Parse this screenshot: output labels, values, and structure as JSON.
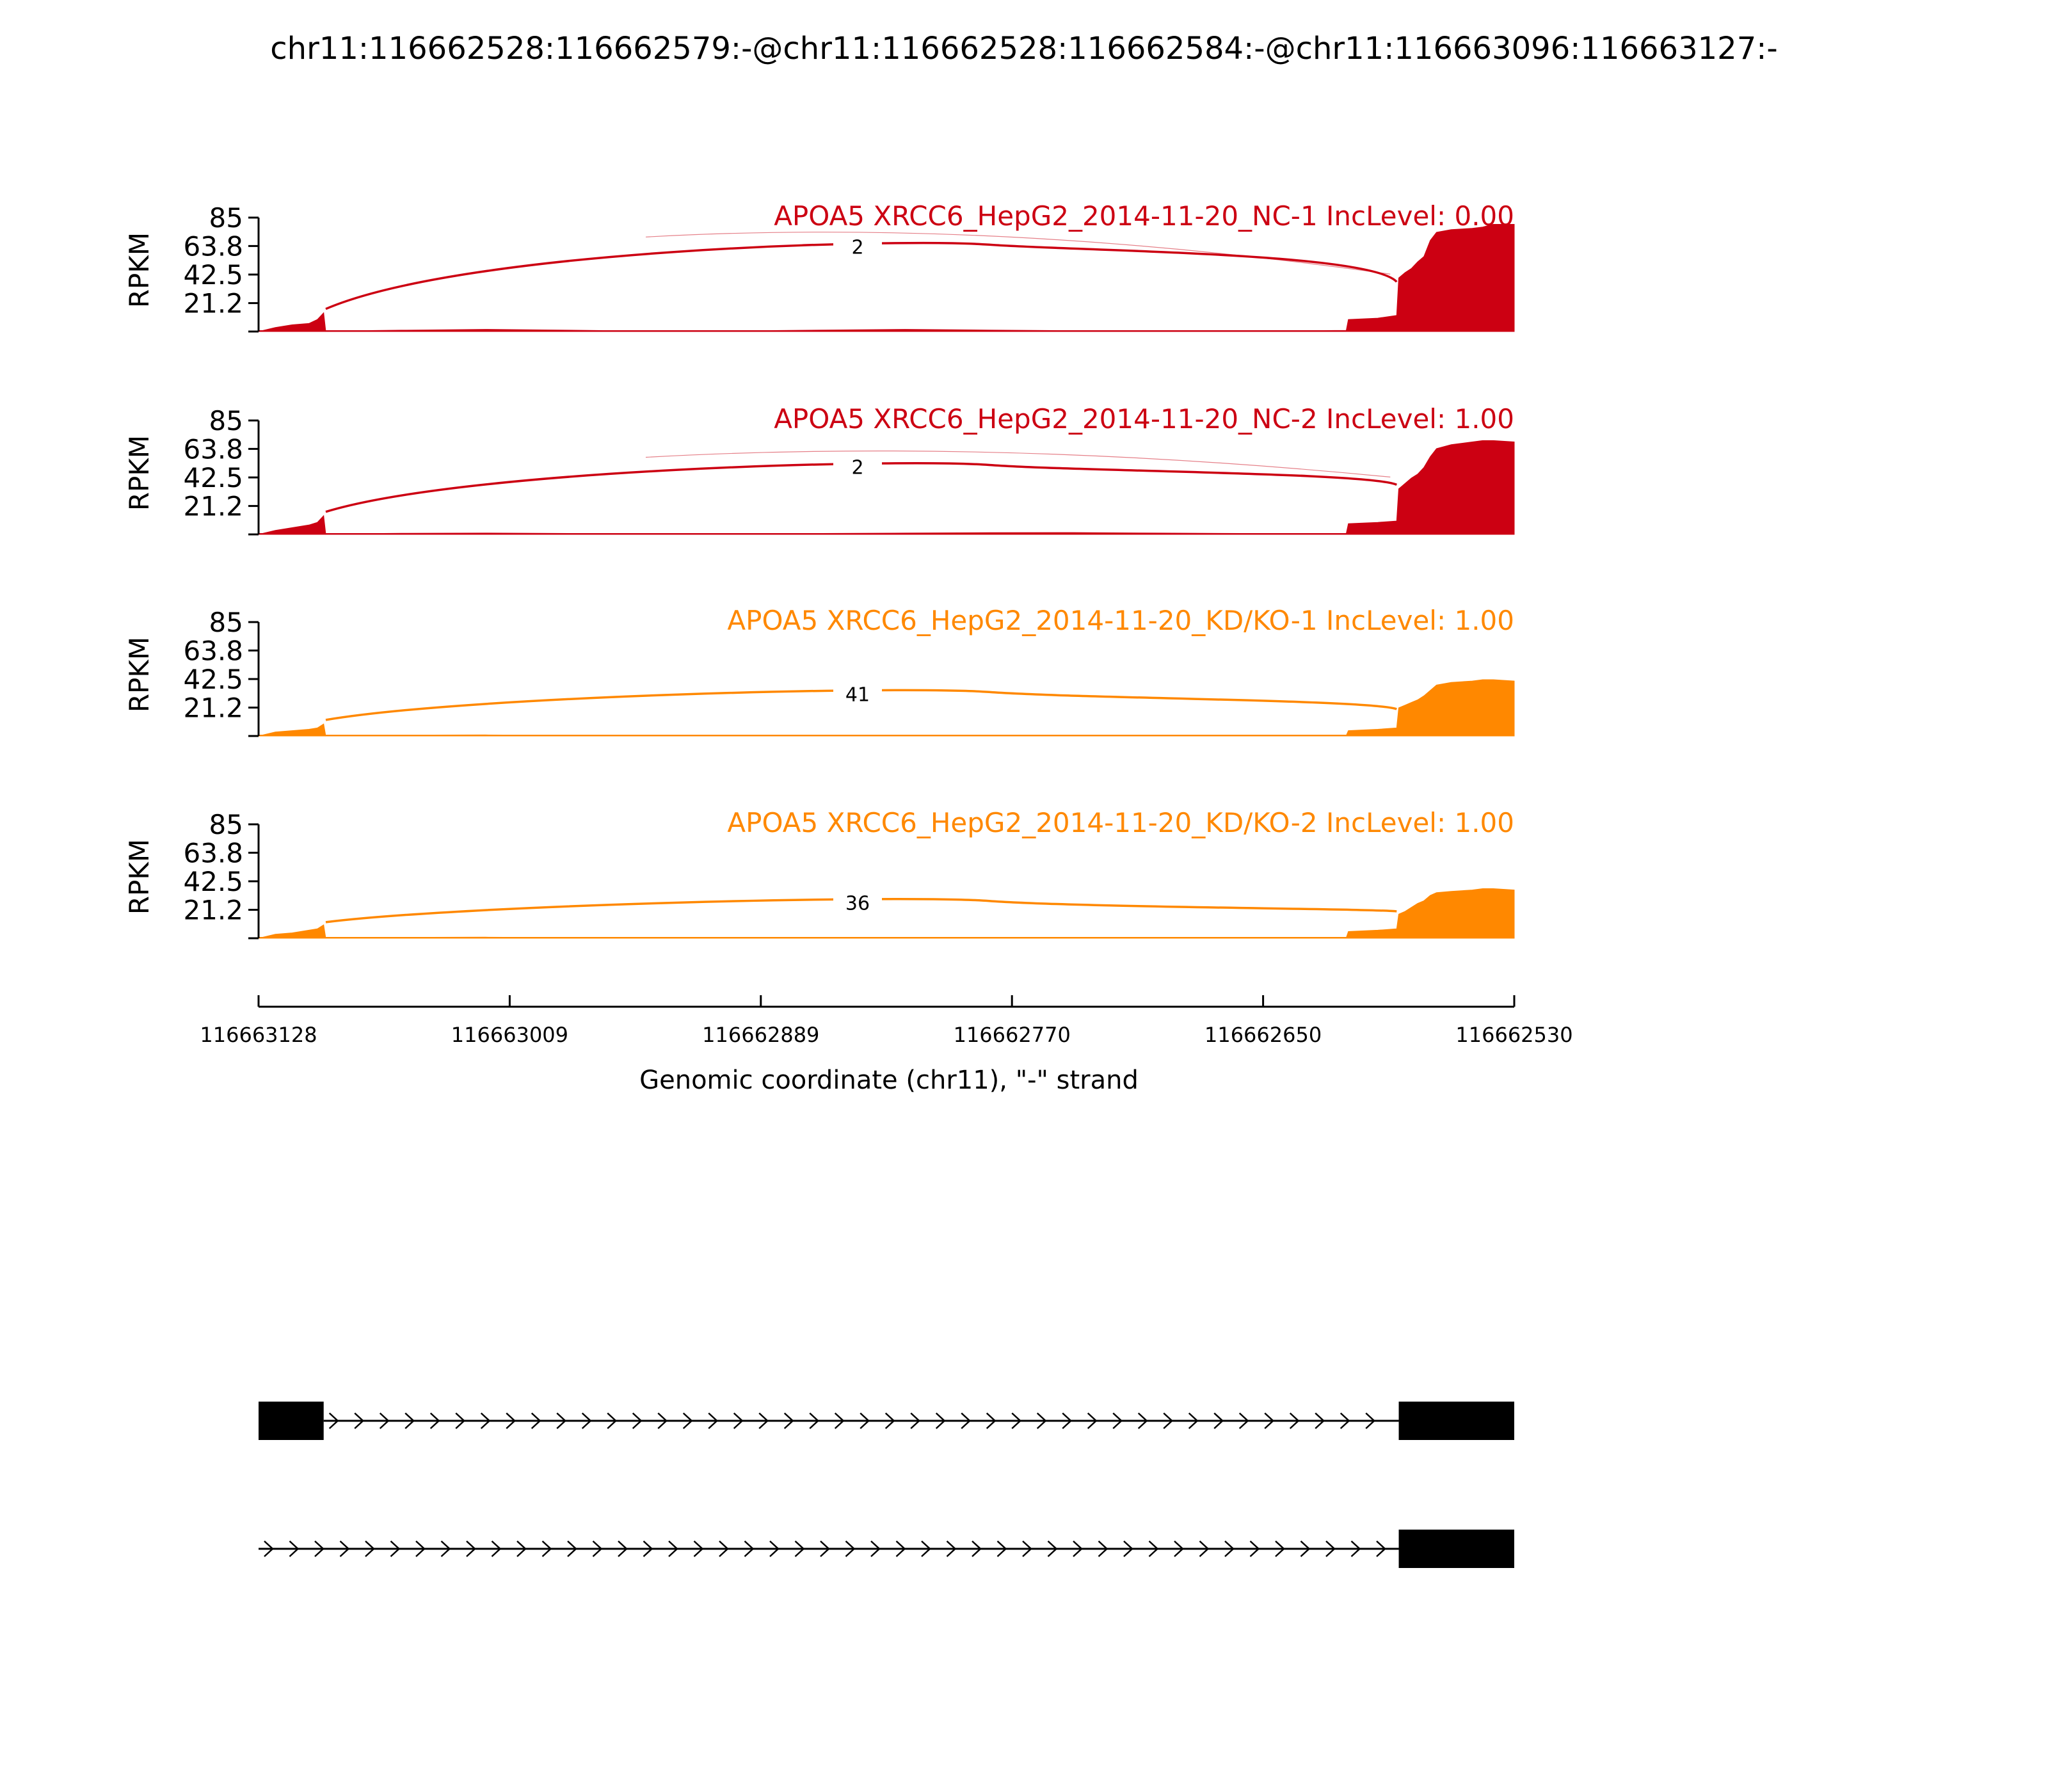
{
  "page_title": "chr11:116662528:116662579:-@chr11:116662528:116662584:-@chr11:116663096:116663127:-",
  "colors": {
    "nc": "#cc0012",
    "kd": "#ff8800",
    "axis": "#000000",
    "model": "#000000"
  },
  "chart_data": {
    "type": "area",
    "subtype": "sashimi",
    "title": "chr11:116662528:116662579:-@chr11:116662528:116662584:-@chr11:116663096:116663127:-",
    "ylabel": "RPKM",
    "yticks": [
      "85",
      "63.8",
      "42.5",
      "21.2"
    ],
    "ylim": [
      0,
      85
    ],
    "xlabel": "Genomic coordinate (chr11), \"-\" strand",
    "xticks": [
      "116663128",
      "116663009",
      "116662889",
      "116662770",
      "116662650",
      "116662530"
    ],
    "xlim": [
      116663128,
      116662530
    ],
    "tracks": [
      {
        "label": "APOA5 XRCC6_HepG2_2014-11-20_NC-1 IncLevel: 0.00",
        "group": "nc",
        "junction_count": "2",
        "junction_peak_rpkm": 61,
        "coverage": [
          [
            116663128,
            0
          ],
          [
            116663120,
            3
          ],
          [
            116663112,
            5
          ],
          [
            116663104,
            6
          ],
          [
            116663100,
            9
          ],
          [
            116663097,
            14
          ],
          [
            116663096,
            0
          ],
          [
            116663095,
            0.4
          ],
          [
            116663060,
            1
          ],
          [
            116663020,
            1.6
          ],
          [
            116662980,
            1
          ],
          [
            116662940,
            0.3
          ],
          [
            116662900,
            0.5
          ],
          [
            116662860,
            1.1
          ],
          [
            116662820,
            1.6
          ],
          [
            116662780,
            1.1
          ],
          [
            116662740,
            0.6
          ],
          [
            116662700,
            0.3
          ],
          [
            116662660,
            0.3
          ],
          [
            116662610,
            0.8
          ],
          [
            116662609,
            9
          ],
          [
            116662595,
            10
          ],
          [
            116662586,
            12
          ],
          [
            116662585,
            40
          ],
          [
            116662582,
            44
          ],
          [
            116662579,
            47
          ],
          [
            116662576,
            52
          ],
          [
            116662573,
            56
          ],
          [
            116662570,
            68
          ],
          [
            116662567,
            74
          ],
          [
            116662560,
            76
          ],
          [
            116662550,
            77
          ],
          [
            116662545,
            78
          ],
          [
            116662540,
            80
          ],
          [
            116662530,
            80
          ]
        ]
      },
      {
        "label": "APOA5 XRCC6_HepG2_2014-11-20_NC-2 IncLevel: 1.00",
        "group": "nc",
        "junction_count": "2",
        "junction_peak_rpkm": 48,
        "coverage": [
          [
            116663128,
            0
          ],
          [
            116663120,
            3
          ],
          [
            116663112,
            5
          ],
          [
            116663104,
            7
          ],
          [
            116663100,
            9
          ],
          [
            116663097,
            14
          ],
          [
            116663096,
            0
          ],
          [
            116663095,
            0.4
          ],
          [
            116663060,
            0.8
          ],
          [
            116663020,
            1
          ],
          [
            116662980,
            0.7
          ],
          [
            116662940,
            0.3
          ],
          [
            116662900,
            0.4
          ],
          [
            116662860,
            0.7
          ],
          [
            116662820,
            1
          ],
          [
            116662780,
            1.3
          ],
          [
            116662740,
            1.4
          ],
          [
            116662700,
            1
          ],
          [
            116662660,
            0.7
          ],
          [
            116662610,
            0.6
          ],
          [
            116662609,
            8
          ],
          [
            116662595,
            9
          ],
          [
            116662586,
            10
          ],
          [
            116662585,
            34
          ],
          [
            116662582,
            38
          ],
          [
            116662579,
            42
          ],
          [
            116662576,
            45
          ],
          [
            116662573,
            50
          ],
          [
            116662570,
            58
          ],
          [
            116662567,
            64
          ],
          [
            116662560,
            67
          ],
          [
            116662550,
            69
          ],
          [
            116662545,
            70
          ],
          [
            116662540,
            70
          ],
          [
            116662530,
            69
          ]
        ]
      },
      {
        "label": "APOA5 XRCC6_HepG2_2014-11-20_KD/KO-1 IncLevel: 1.00",
        "group": "kd",
        "junction_count": "41",
        "junction_peak_rpkm": 29,
        "coverage": [
          [
            116663128,
            0
          ],
          [
            116663120,
            3
          ],
          [
            116663112,
            4
          ],
          [
            116663104,
            5
          ],
          [
            116663100,
            6
          ],
          [
            116663097,
            9
          ],
          [
            116663096,
            0
          ],
          [
            116663095,
            0.5
          ],
          [
            116663060,
            0.6
          ],
          [
            116663020,
            0.8
          ],
          [
            116662980,
            0.5
          ],
          [
            116662940,
            0.3
          ],
          [
            116662900,
            0.3
          ],
          [
            116662860,
            0.4
          ],
          [
            116662820,
            0.5
          ],
          [
            116662780,
            0.4
          ],
          [
            116662740,
            0.3
          ],
          [
            116662700,
            0.3
          ],
          [
            116662660,
            0.3
          ],
          [
            116662610,
            0.4
          ],
          [
            116662609,
            4
          ],
          [
            116662595,
            5
          ],
          [
            116662586,
            6
          ],
          [
            116662585,
            21
          ],
          [
            116662582,
            23
          ],
          [
            116662579,
            25
          ],
          [
            116662576,
            27
          ],
          [
            116662573,
            30
          ],
          [
            116662570,
            34
          ],
          [
            116662567,
            38
          ],
          [
            116662560,
            40
          ],
          [
            116662550,
            41
          ],
          [
            116662545,
            42
          ],
          [
            116662540,
            42
          ],
          [
            116662530,
            41
          ]
        ]
      },
      {
        "label": "APOA5 XRCC6_HepG2_2014-11-20_KD/KO-2 IncLevel: 1.00",
        "group": "kd",
        "junction_count": "36",
        "junction_peak_rpkm": 24,
        "coverage": [
          [
            116663128,
            0
          ],
          [
            116663120,
            3
          ],
          [
            116663112,
            4
          ],
          [
            116663104,
            6
          ],
          [
            116663100,
            7
          ],
          [
            116663097,
            10
          ],
          [
            116663096,
            0
          ],
          [
            116663095,
            0.5
          ],
          [
            116663060,
            0.6
          ],
          [
            116663020,
            0.8
          ],
          [
            116662980,
            0.5
          ],
          [
            116662940,
            0.3
          ],
          [
            116662900,
            0.3
          ],
          [
            116662860,
            0.4
          ],
          [
            116662820,
            0.5
          ],
          [
            116662780,
            0.4
          ],
          [
            116662740,
            0.3
          ],
          [
            116662700,
            0.3
          ],
          [
            116662660,
            0.3
          ],
          [
            116662610,
            0.4
          ],
          [
            116662609,
            5
          ],
          [
            116662595,
            6
          ],
          [
            116662586,
            7
          ],
          [
            116662585,
            18
          ],
          [
            116662582,
            20
          ],
          [
            116662579,
            23
          ],
          [
            116662576,
            26
          ],
          [
            116662573,
            28
          ],
          [
            116662570,
            32
          ],
          [
            116662567,
            34
          ],
          [
            116662560,
            35
          ],
          [
            116662550,
            36
          ],
          [
            116662545,
            37
          ],
          [
            116662540,
            37
          ],
          [
            116662530,
            36
          ]
        ]
      }
    ],
    "gene_models": [
      {
        "exons": [
          [
            116663128,
            116663097
          ],
          [
            116662585,
            116662530
          ]
        ],
        "intron": [
          116663097,
          116662585
        ]
      },
      {
        "exons": [
          [
            116662585,
            116662530
          ]
        ],
        "intron": [
          116663128,
          116662585
        ]
      }
    ]
  }
}
